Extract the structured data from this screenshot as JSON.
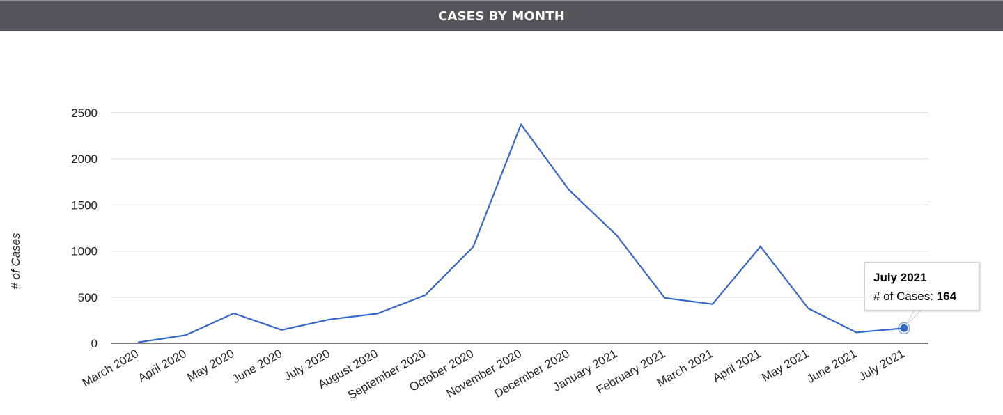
{
  "header": {
    "title": "CASES BY MONTH"
  },
  "chart_data": {
    "type": "line",
    "title": "CASES BY MONTH",
    "xlabel": "",
    "ylabel": "# of Cases",
    "ylim": [
      0,
      2500
    ],
    "yticks": [
      "0",
      "500",
      "1000",
      "1500",
      "2000",
      "2500"
    ],
    "grid": true,
    "categories": [
      "March 2020",
      "April 2020",
      "May 2020",
      "June 2020",
      "July 2020",
      "August 2020",
      "September 2020",
      "October 2020",
      "November 2020",
      "December 2020",
      "January 2021",
      "February 2021",
      "March 2021",
      "April 2021",
      "May 2021",
      "June 2021",
      "July 2021"
    ],
    "series": [
      {
        "name": "# of Cases",
        "values": [
          10,
          88,
          325,
          145,
          258,
          322,
          522,
          1045,
          2375,
          1665,
          1170,
          492,
          425,
          1050,
          378,
          118,
          164
        ]
      }
    ],
    "colors": {
      "line": "#3366cc",
      "grid": "#cccccc",
      "axis": "#333333"
    }
  },
  "tooltip": {
    "title": "July 2021",
    "label": "# of Cases: ",
    "value": "164"
  }
}
